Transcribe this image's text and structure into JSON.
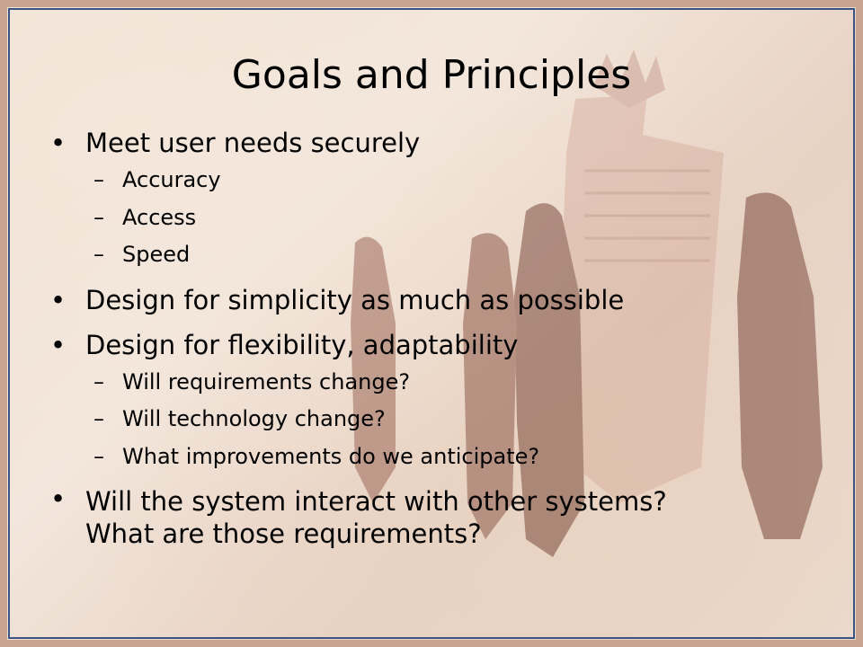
{
  "slide": {
    "title": "Goals and Principles",
    "bullets": [
      {
        "text": "Meet user needs securely",
        "sub": [
          "Accuracy",
          "Access",
          "Speed"
        ]
      },
      {
        "text": "Design for simplicity as much as possible",
        "sub": []
      },
      {
        "text": "Design for flexibility, adaptability",
        "sub": [
          "Will requirements change?",
          "Will technology change?",
          "What improvements do we anticipate?"
        ]
      },
      {
        "text_lines": [
          "Will the system interact with other systems?",
          "What are those requirements?"
        ],
        "sub": []
      }
    ],
    "bullet_glyph": "•",
    "dash_glyph": "–"
  },
  "colors": {
    "frame_border": "#3a5383",
    "outer_border": "#c9a48f",
    "figure_dark": "#7a4a3d",
    "text": "#000000"
  }
}
